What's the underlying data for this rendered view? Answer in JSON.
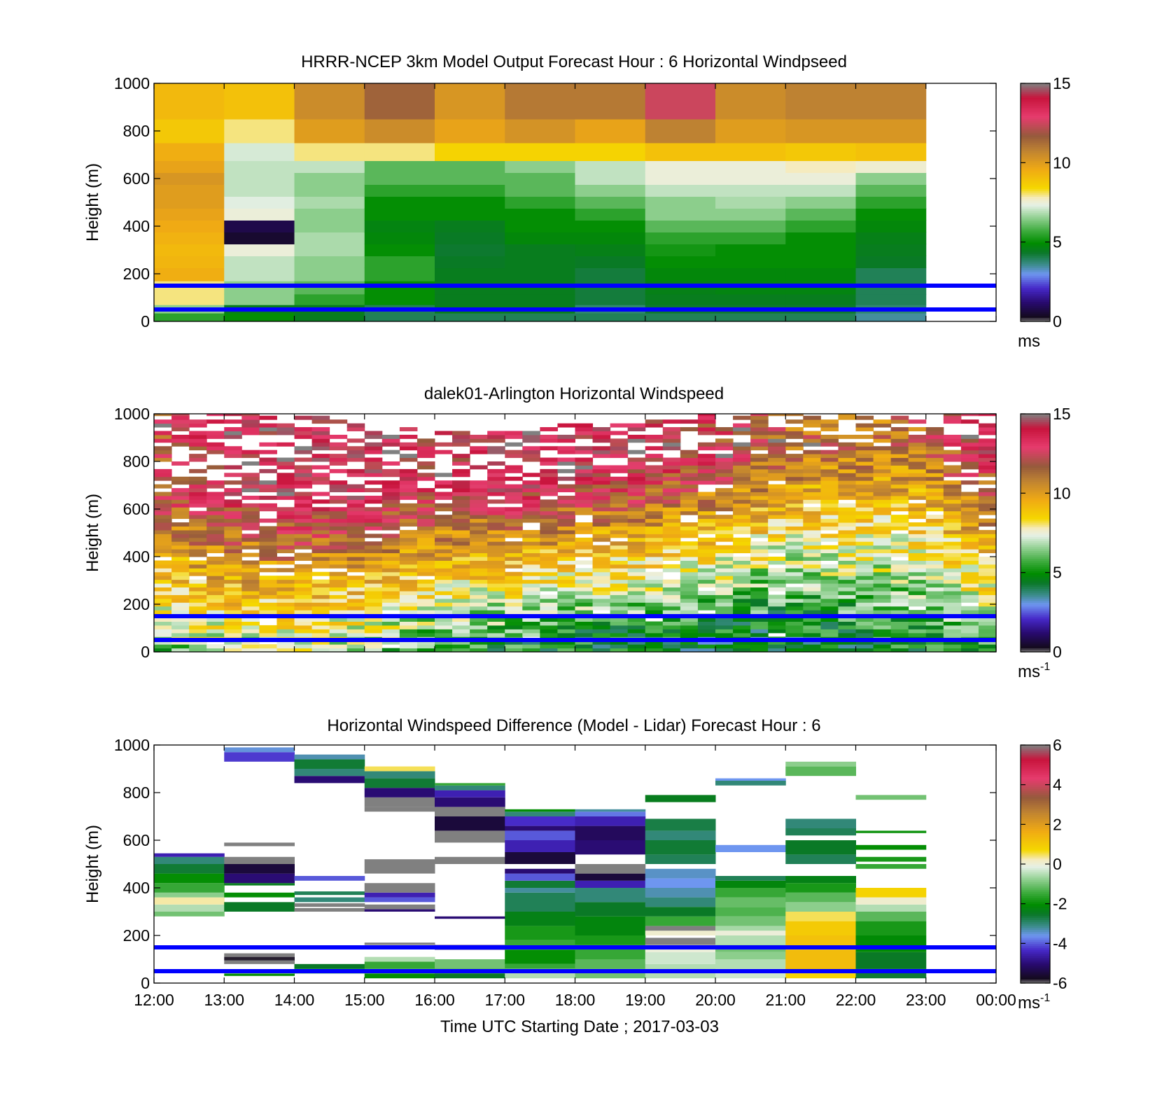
{
  "colors": {
    "reference_line": "#0000ff",
    "frame": "#000000",
    "background": "#ffffff",
    "missing_value": "#808080"
  },
  "shared": {
    "xlabel": "Time UTC  Starting Date ; 2017-03-03",
    "x_ticks": [
      "12:00",
      "13:00",
      "14:00",
      "15:00",
      "16:00",
      "17:00",
      "18:00",
      "19:00",
      "20:00",
      "21:00",
      "22:00",
      "23:00",
      "00:00"
    ],
    "x_range_hours": [
      12,
      24
    ],
    "reference_heights_m": [
      150,
      50
    ]
  },
  "chart_data": [
    {
      "type": "heatmap",
      "title": "HRRR-NCEP 3km Model Output   Forecast Hour : 6 Horizontal Windpseed",
      "ylabel": "Height (m)",
      "ylim": [
        0,
        1000
      ],
      "y_ticks": [
        "0",
        "200",
        "400",
        "600",
        "800",
        "1000"
      ],
      "colorbar": {
        "min": 0,
        "max": 15,
        "ticks": [
          "0",
          "5",
          "10",
          "15"
        ],
        "unit": "ms",
        "unit_exp": "",
        "scale": "speed"
      },
      "hours": [
        12,
        13,
        14,
        15,
        16,
        17,
        18,
        19,
        20,
        21,
        22
      ],
      "heights_m": [
        20,
        50,
        90,
        140,
        200,
        250,
        300,
        350,
        400,
        450,
        500,
        550,
        600,
        650,
        700,
        800,
        900
      ],
      "values": [
        [
          5.5,
          6.5,
          8,
          8,
          9.5,
          9.3,
          9.2,
          9.4,
          9.6,
          9.8,
          10,
          10,
          10.2,
          9.8,
          9.5,
          8.8,
          9.2
        ],
        [
          5,
          4.5,
          6.5,
          6.5,
          7,
          7,
          7.5,
          0.5,
          0.8,
          7.5,
          7.3,
          7,
          7,
          7,
          7.2,
          8,
          9
        ],
        [
          4.5,
          4.5,
          5.5,
          6,
          6.5,
          6.5,
          6.8,
          6.8,
          6.5,
          6.5,
          6.8,
          6.5,
          6.5,
          7,
          8,
          10,
          10.5
        ],
        [
          4,
          4,
          5,
          5,
          5.5,
          5.5,
          5,
          4.8,
          4.7,
          5,
          5,
          5.5,
          6,
          6,
          8,
          10.5,
          11.5
        ],
        [
          4,
          4.5,
          4.5,
          4.5,
          4.5,
          4.4,
          4.3,
          4.4,
          4.5,
          5,
          5,
          5.5,
          6,
          6,
          8.5,
          9.8,
          10.2
        ],
        [
          4,
          4.5,
          4.5,
          4.5,
          4.5,
          4.5,
          4.5,
          4.8,
          5,
          5,
          5.5,
          6,
          6,
          6.5,
          8.5,
          10.3,
          11
        ],
        [
          4,
          3.8,
          4.2,
          4.2,
          4.2,
          4.4,
          4.6,
          4.8,
          5,
          5.5,
          6,
          6.5,
          7,
          7,
          8.5,
          9.8,
          11
        ],
        [
          4,
          4.3,
          4.5,
          4.6,
          4.8,
          5,
          5.2,
          5.5,
          6,
          6.5,
          6.5,
          7,
          7.5,
          7.5,
          9,
          10.8,
          12.5
        ],
        [
          4,
          4.3,
          4.5,
          4.7,
          4.8,
          5,
          5,
          5.5,
          6,
          6.5,
          6.8,
          7,
          7.5,
          7.5,
          9,
          10,
          10.5
        ],
        [
          4,
          4.3,
          4.5,
          4.7,
          4.8,
          5,
          5,
          5,
          5.5,
          6,
          6.5,
          7,
          7.5,
          7.8,
          8.8,
          10.2,
          10.8
        ],
        [
          3.5,
          3.8,
          4,
          4,
          4,
          4.4,
          4.5,
          4.6,
          4.8,
          5,
          5.5,
          6,
          6.5,
          7.6,
          9,
          10.2,
          10.8
        ]
      ]
    },
    {
      "type": "heatmap",
      "title": "dalek01-Arlington  Horizontal Windspeed",
      "ylabel": "Height (m)",
      "ylim": [
        0,
        1000
      ],
      "y_ticks": [
        "0",
        "200",
        "400",
        "600",
        "800",
        "1000"
      ],
      "colorbar": {
        "min": 0,
        "max": 15,
        "ticks": [
          "0",
          "5",
          "10",
          "15"
        ],
        "unit": "ms",
        "unit_exp": "-1",
        "scale": "speed"
      },
      "profile": {
        "hours": [
          12,
          13,
          14,
          15,
          16,
          17,
          18,
          19,
          20,
          21,
          22,
          23,
          24
        ],
        "surface_speed": [
          6,
          7,
          7,
          6.5,
          5.5,
          5,
          4.5,
          4.5,
          4,
          4,
          4.5,
          5,
          6
        ],
        "top_speed": [
          12,
          13,
          13.5,
          13.5,
          13,
          13.5,
          13.5,
          13.5,
          12.5,
          11.5,
          11,
          11.5,
          14
        ],
        "gradient_top_m": [
          650,
          650,
          650,
          650,
          700,
          700,
          750,
          800,
          800,
          850,
          850,
          900,
          900
        ],
        "data_top_m": [
          1000,
          1000,
          990,
          960,
          920,
          920,
          960,
          960,
          1000,
          1000,
          1000,
          1000,
          1000
        ]
      }
    },
    {
      "type": "heatmap",
      "title": "Horizontal Windspeed Difference (Model - Lidar) Forecast Hour : 6",
      "ylabel": "Height (m)",
      "ylim": [
        0,
        1000
      ],
      "y_ticks": [
        "0",
        "200",
        "400",
        "600",
        "800",
        "1000"
      ],
      "colorbar": {
        "min": -6,
        "max": 6,
        "ticks": [
          "-6",
          "-4",
          "-2",
          "0",
          "2",
          "4",
          "6"
        ],
        "unit": "ms",
        "unit_exp": "-1",
        "scale": "diff"
      },
      "hours": [
        12,
        13,
        14,
        15,
        16,
        17,
        18,
        19,
        20,
        21,
        22
      ],
      "segments": [
        [
          [
            280,
            300,
            -1
          ],
          [
            300,
            330,
            -0.5
          ],
          [
            330,
            360,
            0.3
          ],
          [
            360,
            380,
            -0.8
          ],
          [
            380,
            420,
            -1.5
          ],
          [
            420,
            460,
            -2
          ],
          [
            460,
            500,
            -2.6
          ],
          [
            500,
            530,
            -3
          ],
          [
            530,
            545,
            -4.5
          ]
        ],
        [
          [
            30,
            40,
            -2
          ],
          [
            80,
            95,
            -6
          ],
          [
            95,
            110,
            -5.8
          ],
          [
            110,
            125,
            99
          ],
          [
            300,
            340,
            -2.5
          ],
          [
            360,
            380,
            -2
          ],
          [
            410,
            420,
            -2.4
          ],
          [
            420,
            460,
            -5
          ],
          [
            460,
            500,
            -5.5
          ],
          [
            500,
            530,
            -6
          ],
          [
            575,
            590,
            99
          ],
          [
            930,
            970,
            -4.2
          ],
          [
            970,
            990,
            -3.5
          ]
        ],
        [
          [
            40,
            60,
            -1.5
          ],
          [
            60,
            80,
            -2.5
          ],
          [
            300,
            315,
            99
          ],
          [
            320,
            335,
            -6
          ],
          [
            340,
            360,
            -3
          ],
          [
            370,
            385,
            -2.8
          ],
          [
            430,
            450,
            -4
          ],
          [
            840,
            870,
            -5
          ],
          [
            870,
            900,
            -3
          ],
          [
            900,
            940,
            -2.6
          ],
          [
            940,
            960,
            -3.3
          ]
        ],
        [
          [
            20,
            40,
            -2
          ],
          [
            40,
            60,
            -1
          ],
          [
            60,
            90,
            -1.5
          ],
          [
            90,
            110,
            -0.5
          ],
          [
            160,
            170,
            -6
          ],
          [
            300,
            310,
            -5
          ],
          [
            310,
            330,
            99
          ],
          [
            340,
            360,
            -4
          ],
          [
            360,
            380,
            -4.5
          ],
          [
            380,
            420,
            99
          ],
          [
            460,
            520,
            99
          ],
          [
            720,
            740,
            99
          ],
          [
            740,
            780,
            -6
          ],
          [
            780,
            820,
            -5
          ],
          [
            820,
            860,
            -2.6
          ],
          [
            860,
            890,
            -3
          ],
          [
            890,
            910,
            0.5
          ]
        ],
        [
          [
            20,
            40,
            -2.5
          ],
          [
            40,
            60,
            -1.5
          ],
          [
            60,
            100,
            -1
          ],
          [
            140,
            160,
            -5
          ],
          [
            270,
            280,
            -5
          ],
          [
            500,
            530,
            99
          ],
          [
            590,
            640,
            -6
          ],
          [
            640,
            700,
            -5.5
          ],
          [
            700,
            740,
            99
          ],
          [
            740,
            780,
            -5
          ],
          [
            780,
            810,
            -4.5
          ],
          [
            810,
            830,
            -3
          ],
          [
            830,
            840,
            -1.5
          ]
        ],
        [
          [
            20,
            60,
            -0.5
          ],
          [
            60,
            80,
            -1.5
          ],
          [
            80,
            140,
            -2
          ],
          [
            140,
            180,
            -1.5
          ],
          [
            180,
            240,
            -1.8
          ],
          [
            240,
            300,
            -2.3
          ],
          [
            300,
            380,
            -2.8
          ],
          [
            380,
            400,
            -3.2
          ],
          [
            400,
            430,
            -2.6
          ],
          [
            430,
            460,
            -4
          ],
          [
            460,
            480,
            -5
          ],
          [
            500,
            550,
            -5.5
          ],
          [
            550,
            600,
            -4.5
          ],
          [
            600,
            640,
            -4
          ],
          [
            640,
            660,
            -5
          ],
          [
            660,
            700,
            -4.3
          ],
          [
            700,
            720,
            -3
          ],
          [
            720,
            730,
            -2
          ]
        ],
        [
          [
            20,
            60,
            -1
          ],
          [
            60,
            100,
            -1.2
          ],
          [
            100,
            160,
            -1.5
          ],
          [
            160,
            200,
            -1.8
          ],
          [
            200,
            280,
            -2.2
          ],
          [
            280,
            340,
            -2.5
          ],
          [
            340,
            400,
            -3
          ],
          [
            400,
            430,
            -4.5
          ],
          [
            430,
            460,
            -5.5
          ],
          [
            460,
            500,
            -6
          ],
          [
            540,
            600,
            -5
          ],
          [
            600,
            660,
            -5.2
          ],
          [
            660,
            700,
            -4.5
          ],
          [
            700,
            720,
            -3.8
          ],
          [
            720,
            730,
            -3.2
          ]
        ],
        [
          [
            20,
            80,
            -0.5
          ],
          [
            80,
            130,
            -0.3
          ],
          [
            130,
            160,
            0
          ],
          [
            160,
            190,
            99
          ],
          [
            200,
            220,
            0.1
          ],
          [
            220,
            240,
            99
          ],
          [
            240,
            280,
            -1.5
          ],
          [
            280,
            320,
            -2.5
          ],
          [
            320,
            360,
            -3
          ],
          [
            360,
            400,
            -3.3
          ],
          [
            400,
            440,
            -3.6
          ],
          [
            440,
            480,
            -3.4
          ],
          [
            500,
            540,
            -2.8
          ],
          [
            540,
            600,
            -2.6
          ],
          [
            600,
            640,
            -3
          ],
          [
            640,
            690,
            -2.7
          ],
          [
            760,
            790,
            -2.4
          ]
        ],
        [
          [
            20,
            60,
            -0.3
          ],
          [
            60,
            100,
            -0.5
          ],
          [
            100,
            130,
            -0.8
          ],
          [
            130,
            160,
            -1
          ],
          [
            160,
            200,
            -0.5
          ],
          [
            200,
            220,
            0
          ],
          [
            220,
            240,
            -0.6
          ],
          [
            240,
            280,
            -1
          ],
          [
            280,
            320,
            -1.3
          ],
          [
            320,
            360,
            -1.1
          ],
          [
            360,
            400,
            -1.5
          ],
          [
            400,
            430,
            -2.2
          ],
          [
            430,
            450,
            -2.8
          ],
          [
            550,
            580,
            -3.6
          ],
          [
            830,
            850,
            -3
          ],
          [
            850,
            860,
            -3.6
          ]
        ],
        [
          [
            20,
            40,
            0.8
          ],
          [
            40,
            140,
            1.3
          ],
          [
            140,
            200,
            1.2
          ],
          [
            200,
            260,
            1
          ],
          [
            260,
            300,
            0.5
          ],
          [
            300,
            340,
            -0.8
          ],
          [
            340,
            380,
            -1.2
          ],
          [
            380,
            420,
            -1.8
          ],
          [
            420,
            450,
            -2.3
          ],
          [
            500,
            540,
            -2.8
          ],
          [
            540,
            600,
            -2.5
          ],
          [
            620,
            650,
            -2.8
          ],
          [
            650,
            690,
            -3
          ],
          [
            870,
            910,
            -1.2
          ],
          [
            910,
            930,
            -0.8
          ]
        ],
        [
          [
            20,
            60,
            -2.6
          ],
          [
            60,
            130,
            -2.5
          ],
          [
            130,
            200,
            -2.1
          ],
          [
            200,
            260,
            -1.8
          ],
          [
            260,
            300,
            -1.2
          ],
          [
            300,
            330,
            -0.5
          ],
          [
            330,
            360,
            0.1
          ],
          [
            360,
            400,
            0.8
          ],
          [
            480,
            500,
            -1.5
          ],
          [
            510,
            530,
            -1.8
          ],
          [
            560,
            580,
            -2
          ],
          [
            630,
            640,
            -1.9
          ],
          [
            770,
            790,
            -1
          ]
        ]
      ]
    }
  ]
}
